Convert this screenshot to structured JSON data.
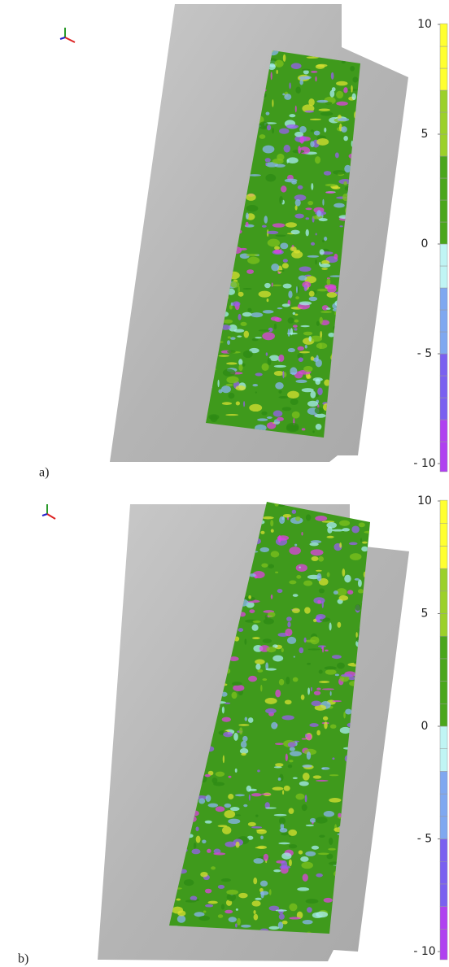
{
  "panels": [
    {
      "label": "a)",
      "colorbar": {
        "lim": [
          -10,
          10
        ],
        "ticks": [
          10,
          5,
          0,
          {
            "value": -5,
            "label": "- 5"
          },
          {
            "value": -10,
            "label": "- 10"
          }
        ]
      }
    },
    {
      "label": "b)",
      "colorbar": {
        "lim": [
          -10,
          10
        ],
        "ticks": [
          10,
          5,
          0,
          {
            "value": -5,
            "label": "- 5"
          },
          {
            "value": -10,
            "label": "- 10"
          }
        ]
      }
    }
  ]
}
